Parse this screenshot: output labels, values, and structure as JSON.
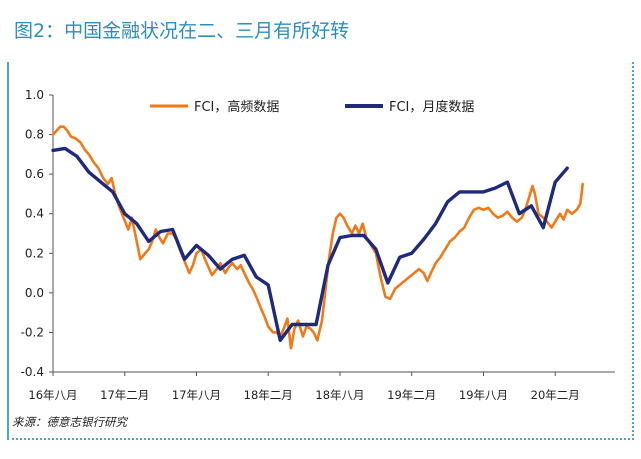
{
  "title": "图2：中国金融状况在二、三月有所好转",
  "source": "来源：德意志银行研究",
  "chart_data": {
    "type": "line",
    "ylim": [
      -0.4,
      1.0
    ],
    "yticks": [
      "1.0",
      "0.8",
      "0.6",
      "0.4",
      "0.2",
      "0.0",
      "-0.2",
      "-0.4"
    ],
    "xlim": [
      0,
      47
    ],
    "xtick_labels": [
      {
        "m": 0,
        "label": "16年八月"
      },
      {
        "m": 6,
        "label": "17年二月"
      },
      {
        "m": 12,
        "label": "17年八月"
      },
      {
        "m": 18,
        "label": "18年二月"
      },
      {
        "m": 24,
        "label": "18年八月"
      },
      {
        "m": 30,
        "label": "19年二月"
      },
      {
        "m": 36,
        "label": "19年八月"
      },
      {
        "m": 42,
        "label": "20年二月"
      }
    ],
    "legend_placement": "top",
    "series": [
      {
        "name": "FCI，高频数据",
        "color": "#f07a1a",
        "points": [
          [
            0.0,
            0.8
          ],
          [
            0.3,
            0.82
          ],
          [
            0.6,
            0.84
          ],
          [
            0.9,
            0.84
          ],
          [
            1.2,
            0.82
          ],
          [
            1.5,
            0.79
          ],
          [
            1.9,
            0.78
          ],
          [
            2.3,
            0.76
          ],
          [
            2.7,
            0.72
          ],
          [
            3.0,
            0.7
          ],
          [
            3.4,
            0.66
          ],
          [
            3.8,
            0.63
          ],
          [
            4.2,
            0.58
          ],
          [
            4.6,
            0.55
          ],
          [
            4.9,
            0.58
          ],
          [
            5.2,
            0.5
          ],
          [
            5.5,
            0.44
          ],
          [
            5.9,
            0.38
          ],
          [
            6.3,
            0.32
          ],
          [
            6.6,
            0.38
          ],
          [
            7.0,
            0.26
          ],
          [
            7.3,
            0.17
          ],
          [
            7.7,
            0.2
          ],
          [
            8.0,
            0.22
          ],
          [
            8.3,
            0.26
          ],
          [
            8.6,
            0.32
          ],
          [
            8.9,
            0.28
          ],
          [
            9.2,
            0.25
          ],
          [
            9.6,
            0.3
          ],
          [
            10.0,
            0.3
          ],
          [
            10.3,
            0.27
          ],
          [
            10.6,
            0.22
          ],
          [
            11.0,
            0.16
          ],
          [
            11.4,
            0.1
          ],
          [
            11.7,
            0.14
          ],
          [
            12.0,
            0.2
          ],
          [
            12.4,
            0.22
          ],
          [
            12.7,
            0.17
          ],
          [
            13.0,
            0.13
          ],
          [
            13.3,
            0.09
          ],
          [
            13.7,
            0.12
          ],
          [
            14.0,
            0.15
          ],
          [
            14.4,
            0.1
          ],
          [
            14.7,
            0.13
          ],
          [
            15.0,
            0.15
          ],
          [
            15.4,
            0.12
          ],
          [
            15.7,
            0.14
          ],
          [
            16.0,
            0.1
          ],
          [
            16.4,
            0.05
          ],
          [
            16.7,
            0.02
          ],
          [
            17.0,
            -0.02
          ],
          [
            17.4,
            -0.08
          ],
          [
            17.7,
            -0.12
          ],
          [
            18.0,
            -0.17
          ],
          [
            18.4,
            -0.2
          ],
          [
            18.7,
            -0.2
          ],
          [
            19.0,
            -0.22
          ],
          [
            19.3,
            -0.18
          ],
          [
            19.6,
            -0.13
          ],
          [
            19.9,
            -0.28
          ],
          [
            20.2,
            -0.18
          ],
          [
            20.5,
            -0.14
          ],
          [
            20.9,
            -0.22
          ],
          [
            21.2,
            -0.17
          ],
          [
            21.5,
            -0.18
          ],
          [
            21.8,
            -0.2
          ],
          [
            22.1,
            -0.24
          ],
          [
            22.5,
            -0.14
          ],
          [
            22.8,
            0.02
          ],
          [
            23.1,
            0.18
          ],
          [
            23.4,
            0.3
          ],
          [
            23.7,
            0.38
          ],
          [
            24.0,
            0.4
          ],
          [
            24.3,
            0.38
          ],
          [
            24.6,
            0.34
          ],
          [
            25.0,
            0.3
          ],
          [
            25.3,
            0.34
          ],
          [
            25.6,
            0.3
          ],
          [
            25.9,
            0.35
          ],
          [
            26.2,
            0.28
          ],
          [
            26.6,
            0.24
          ],
          [
            27.0,
            0.2
          ],
          [
            27.4,
            0.08
          ],
          [
            27.8,
            -0.02
          ],
          [
            28.2,
            -0.03
          ],
          [
            28.6,
            0.02
          ],
          [
            29.0,
            0.04
          ],
          [
            29.4,
            0.06
          ],
          [
            29.8,
            0.08
          ],
          [
            30.2,
            0.1
          ],
          [
            30.6,
            0.12
          ],
          [
            31.0,
            0.1
          ],
          [
            31.3,
            0.06
          ],
          [
            31.6,
            0.1
          ],
          [
            32.0,
            0.15
          ],
          [
            32.4,
            0.18
          ],
          [
            32.8,
            0.22
          ],
          [
            33.2,
            0.26
          ],
          [
            33.6,
            0.28
          ],
          [
            34.0,
            0.31
          ],
          [
            34.4,
            0.33
          ],
          [
            34.8,
            0.38
          ],
          [
            35.2,
            0.42
          ],
          [
            35.6,
            0.43
          ],
          [
            36.0,
            0.42
          ],
          [
            36.4,
            0.43
          ],
          [
            36.8,
            0.4
          ],
          [
            37.2,
            0.38
          ],
          [
            37.6,
            0.39
          ],
          [
            38.0,
            0.41
          ],
          [
            38.4,
            0.38
          ],
          [
            38.8,
            0.36
          ],
          [
            39.2,
            0.38
          ],
          [
            39.5,
            0.42
          ],
          [
            39.8,
            0.48
          ],
          [
            40.1,
            0.54
          ],
          [
            40.3,
            0.5
          ],
          [
            40.6,
            0.4
          ],
          [
            41.0,
            0.38
          ],
          [
            41.3,
            0.36
          ],
          [
            41.7,
            0.33
          ],
          [
            42.0,
            0.36
          ],
          [
            42.4,
            0.4
          ],
          [
            42.7,
            0.37
          ],
          [
            43.0,
            0.42
          ],
          [
            43.4,
            0.4
          ],
          [
            43.8,
            0.42
          ],
          [
            44.1,
            0.45
          ],
          [
            44.3,
            0.55
          ]
        ]
      },
      {
        "name": "FCI，月度数据",
        "color": "#1f2a7c",
        "points": [
          [
            0,
            0.72
          ],
          [
            1,
            0.73
          ],
          [
            2,
            0.69
          ],
          [
            3,
            0.61
          ],
          [
            4,
            0.56
          ],
          [
            5,
            0.51
          ],
          [
            6,
            0.4
          ],
          [
            7,
            0.35
          ],
          [
            8,
            0.26
          ],
          [
            9,
            0.31
          ],
          [
            10,
            0.32
          ],
          [
            11,
            0.17
          ],
          [
            12,
            0.24
          ],
          [
            13,
            0.19
          ],
          [
            14,
            0.12
          ],
          [
            15,
            0.17
          ],
          [
            16,
            0.19
          ],
          [
            17,
            0.08
          ],
          [
            18,
            0.04
          ],
          [
            19,
            -0.24
          ],
          [
            20,
            -0.16
          ],
          [
            21,
            -0.16
          ],
          [
            22,
            -0.16
          ],
          [
            23,
            0.14
          ],
          [
            24,
            0.28
          ],
          [
            25,
            0.29
          ],
          [
            26,
            0.29
          ],
          [
            27,
            0.22
          ],
          [
            28,
            0.05
          ],
          [
            29,
            0.18
          ],
          [
            30,
            0.2
          ],
          [
            31,
            0.27
          ],
          [
            32,
            0.35
          ],
          [
            33,
            0.46
          ],
          [
            34,
            0.51
          ],
          [
            35,
            0.51
          ],
          [
            36,
            0.51
          ],
          [
            37,
            0.53
          ],
          [
            38,
            0.56
          ],
          [
            39,
            0.4
          ],
          [
            40,
            0.44
          ],
          [
            41,
            0.33
          ],
          [
            42,
            0.56
          ],
          [
            43,
            0.63
          ]
        ]
      }
    ]
  }
}
